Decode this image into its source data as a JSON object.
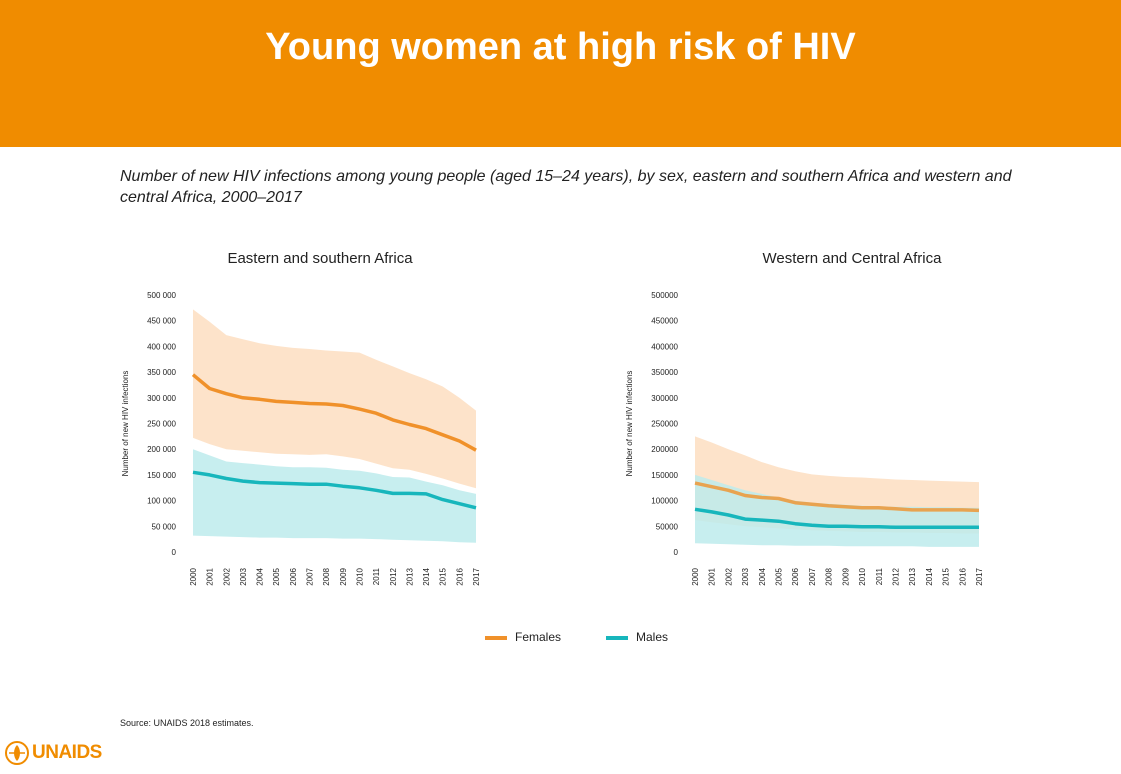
{
  "header": {
    "title": "Young women at high risk of HIV"
  },
  "subtitle": "Number of new HIV infections among young people (aged 15–24 years), by sex, eastern and southern Africa and western and central Africa, 2000–2017",
  "legend": {
    "females": "Females",
    "males": "Males"
  },
  "source": "Source: UNAIDS 2018 estimates.",
  "logo": {
    "text": "UNAIDS",
    "icon": "unaids-emblem-icon"
  },
  "colors": {
    "banner": "#f08c00",
    "females_line": "#f0912a",
    "females_band": "#fcd9b8",
    "males_line": "#17b6bc",
    "males_band": "#bdebec"
  },
  "chart_data": [
    {
      "type": "line",
      "title": "Eastern and southern Africa",
      "ylabel": "Number of new HIV infections",
      "ylim": [
        0,
        500000
      ],
      "yticks": [
        0,
        50000,
        100000,
        150000,
        200000,
        250000,
        300000,
        350000,
        400000,
        450000,
        500000
      ],
      "ytick_labels": [
        "0",
        "50 000",
        "100 000",
        "150 000",
        "200 000",
        "250 000",
        "300 000",
        "350 000",
        "400 000",
        "450 000",
        "500 000"
      ],
      "x": [
        "2000",
        "2001",
        "2002",
        "2003",
        "2004",
        "2005",
        "2006",
        "2007",
        "2008",
        "2009",
        "2010",
        "2011",
        "2012",
        "2013",
        "2014",
        "2015",
        "2016",
        "2017"
      ],
      "series": [
        {
          "name": "Females",
          "values": [
            345000,
            318000,
            308000,
            300000,
            297000,
            293000,
            291000,
            289000,
            288000,
            285000,
            278000,
            270000,
            257000,
            248000,
            240000,
            228000,
            216000,
            198000
          ],
          "upper": [
            472000,
            448000,
            422000,
            414000,
            406000,
            401000,
            397000,
            395000,
            392000,
            390000,
            388000,
            374000,
            361000,
            348000,
            336000,
            322000,
            300000,
            275000
          ],
          "lower": [
            222000,
            210000,
            200000,
            197000,
            194000,
            191000,
            190000,
            189000,
            190000,
            186000,
            181000,
            172000,
            163000,
            160000,
            152000,
            143000,
            133000,
            124000
          ]
        },
        {
          "name": "Males",
          "values": [
            155000,
            150000,
            143000,
            138000,
            135000,
            134000,
            133000,
            132000,
            132000,
            128000,
            125000,
            120000,
            114000,
            114000,
            113000,
            102000,
            94000,
            86000
          ],
          "upper": [
            200000,
            188000,
            176000,
            173000,
            170000,
            167000,
            165000,
            165000,
            164000,
            160000,
            158000,
            153000,
            146000,
            145000,
            137000,
            130000,
            120000,
            113000
          ],
          "lower": [
            32000,
            31000,
            30000,
            29000,
            28000,
            28000,
            27000,
            27000,
            27000,
            26000,
            26000,
            25000,
            24000,
            23000,
            22000,
            21000,
            19000,
            18000
          ]
        }
      ]
    },
    {
      "type": "line",
      "title": "Western and Central Africa",
      "ylabel": "Number of new HIV infections",
      "ylim": [
        0,
        500000
      ],
      "yticks": [
        0,
        50000,
        100000,
        150000,
        200000,
        250000,
        300000,
        350000,
        400000,
        450000,
        500000
      ],
      "ytick_labels": [
        "0",
        "50000",
        "100000",
        "150000",
        "200000",
        "250000",
        "300000",
        "350000",
        "400000",
        "450000",
        "500000"
      ],
      "x": [
        "2000",
        "2001",
        "2002",
        "2003",
        "2004",
        "2005",
        "2006",
        "2007",
        "2008",
        "2009",
        "2010",
        "2011",
        "2012",
        "2013",
        "2014",
        "2015",
        "2016",
        "2017"
      ],
      "series": [
        {
          "name": "Females",
          "values": [
            134000,
            127000,
            120000,
            110000,
            106000,
            104000,
            96000,
            93000,
            90000,
            88000,
            86000,
            86000,
            84000,
            82000,
            82000,
            82000,
            82000,
            81000
          ],
          "upper": [
            225000,
            213000,
            200000,
            188000,
            175000,
            165000,
            157000,
            151000,
            148000,
            146000,
            145000,
            143000,
            141000,
            140000,
            139000,
            138000,
            137000,
            136000
          ],
          "lower": [
            62000,
            58000,
            54000,
            50000,
            48000,
            46000,
            44000,
            42000,
            41000,
            40000,
            39000,
            39000,
            38000,
            38000,
            37000,
            37000,
            36000,
            36000
          ]
        },
        {
          "name": "Males",
          "values": [
            83000,
            78000,
            72000,
            64000,
            62000,
            60000,
            55000,
            52000,
            50000,
            50000,
            49000,
            49000,
            48000,
            48000,
            48000,
            48000,
            48000,
            48000
          ],
          "upper": [
            150000,
            140000,
            130000,
            120000,
            113000,
            106000,
            100000,
            96000,
            94000,
            92000,
            90000,
            89000,
            88000,
            88000,
            87000,
            87000,
            86000,
            86000
          ],
          "lower": [
            17000,
            16000,
            15000,
            14000,
            13000,
            13000,
            12000,
            12000,
            12000,
            11000,
            11000,
            11000,
            11000,
            11000,
            10000,
            10000,
            10000,
            10000
          ]
        }
      ]
    }
  ]
}
